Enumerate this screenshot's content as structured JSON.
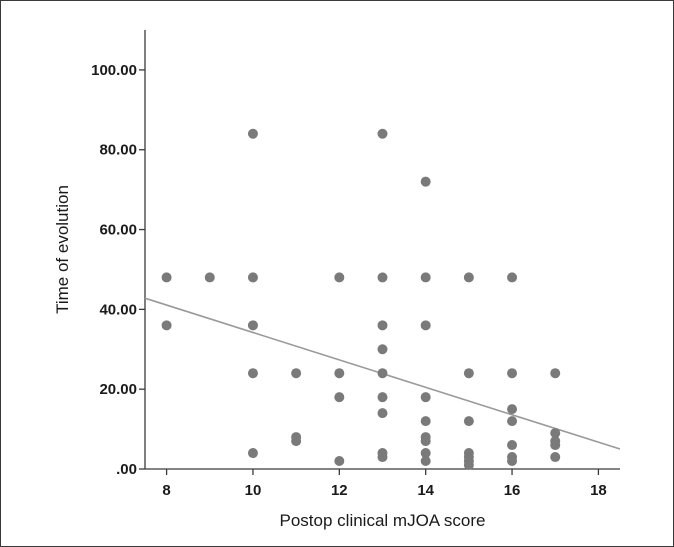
{
  "chart_data": {
    "type": "scatter",
    "title": "",
    "xlabel": "Postop clinical mJOA score",
    "ylabel": "Time of evolution",
    "xlim": [
      7.5,
      18.5
    ],
    "ylim": [
      0,
      110
    ],
    "x_ticks": [
      {
        "value": 8,
        "label": "8"
      },
      {
        "value": 10,
        "label": "10"
      },
      {
        "value": 12,
        "label": "12"
      },
      {
        "value": 14,
        "label": "14"
      },
      {
        "value": 16,
        "label": "16"
      },
      {
        "value": 18,
        "label": "18"
      }
    ],
    "y_ticks": [
      {
        "value": 0,
        "label": ".00"
      },
      {
        "value": 20,
        "label": "20.00"
      },
      {
        "value": 40,
        "label": "40.00"
      },
      {
        "value": 60,
        "label": "60.00"
      },
      {
        "value": 80,
        "label": "80.00"
      },
      {
        "value": 100,
        "label": "100.00"
      }
    ],
    "grid": false,
    "legend": "none",
    "point_color": "#7a7a7a",
    "line_color": "#9a9a9a",
    "axis_color": "#3a3a3a",
    "points": [
      {
        "x": 8,
        "y": 48
      },
      {
        "x": 8,
        "y": 36
      },
      {
        "x": 9,
        "y": 48
      },
      {
        "x": 10,
        "y": 84
      },
      {
        "x": 10,
        "y": 48
      },
      {
        "x": 10,
        "y": 36
      },
      {
        "x": 10,
        "y": 24
      },
      {
        "x": 10,
        "y": 4
      },
      {
        "x": 11,
        "y": 24
      },
      {
        "x": 11,
        "y": 8
      },
      {
        "x": 11,
        "y": 7
      },
      {
        "x": 12,
        "y": 48
      },
      {
        "x": 12,
        "y": 24
      },
      {
        "x": 12,
        "y": 18
      },
      {
        "x": 12,
        "y": 2
      },
      {
        "x": 13,
        "y": 84
      },
      {
        "x": 13,
        "y": 48
      },
      {
        "x": 13,
        "y": 36
      },
      {
        "x": 13,
        "y": 30
      },
      {
        "x": 13,
        "y": 24
      },
      {
        "x": 13,
        "y": 18
      },
      {
        "x": 13,
        "y": 14
      },
      {
        "x": 13,
        "y": 4
      },
      {
        "x": 13,
        "y": 3
      },
      {
        "x": 14,
        "y": 72
      },
      {
        "x": 14,
        "y": 48
      },
      {
        "x": 14,
        "y": 36
      },
      {
        "x": 14,
        "y": 18
      },
      {
        "x": 14,
        "y": 12
      },
      {
        "x": 14,
        "y": 8
      },
      {
        "x": 14,
        "y": 7
      },
      {
        "x": 14,
        "y": 4
      },
      {
        "x": 14,
        "y": 2
      },
      {
        "x": 15,
        "y": 48
      },
      {
        "x": 15,
        "y": 24
      },
      {
        "x": 15,
        "y": 12
      },
      {
        "x": 15,
        "y": 4
      },
      {
        "x": 15,
        "y": 3
      },
      {
        "x": 15,
        "y": 2
      },
      {
        "x": 15,
        "y": 1
      },
      {
        "x": 16,
        "y": 48
      },
      {
        "x": 16,
        "y": 24
      },
      {
        "x": 16,
        "y": 15
      },
      {
        "x": 16,
        "y": 12
      },
      {
        "x": 16,
        "y": 6
      },
      {
        "x": 16,
        "y": 3
      },
      {
        "x": 16,
        "y": 2
      },
      {
        "x": 17,
        "y": 24
      },
      {
        "x": 17,
        "y": 9
      },
      {
        "x": 17,
        "y": 7
      },
      {
        "x": 17,
        "y": 6
      },
      {
        "x": 17,
        "y": 3
      }
    ],
    "fit_line": {
      "x": [
        7.5,
        18.5
      ],
      "y": [
        42.8,
        5.0
      ]
    }
  }
}
